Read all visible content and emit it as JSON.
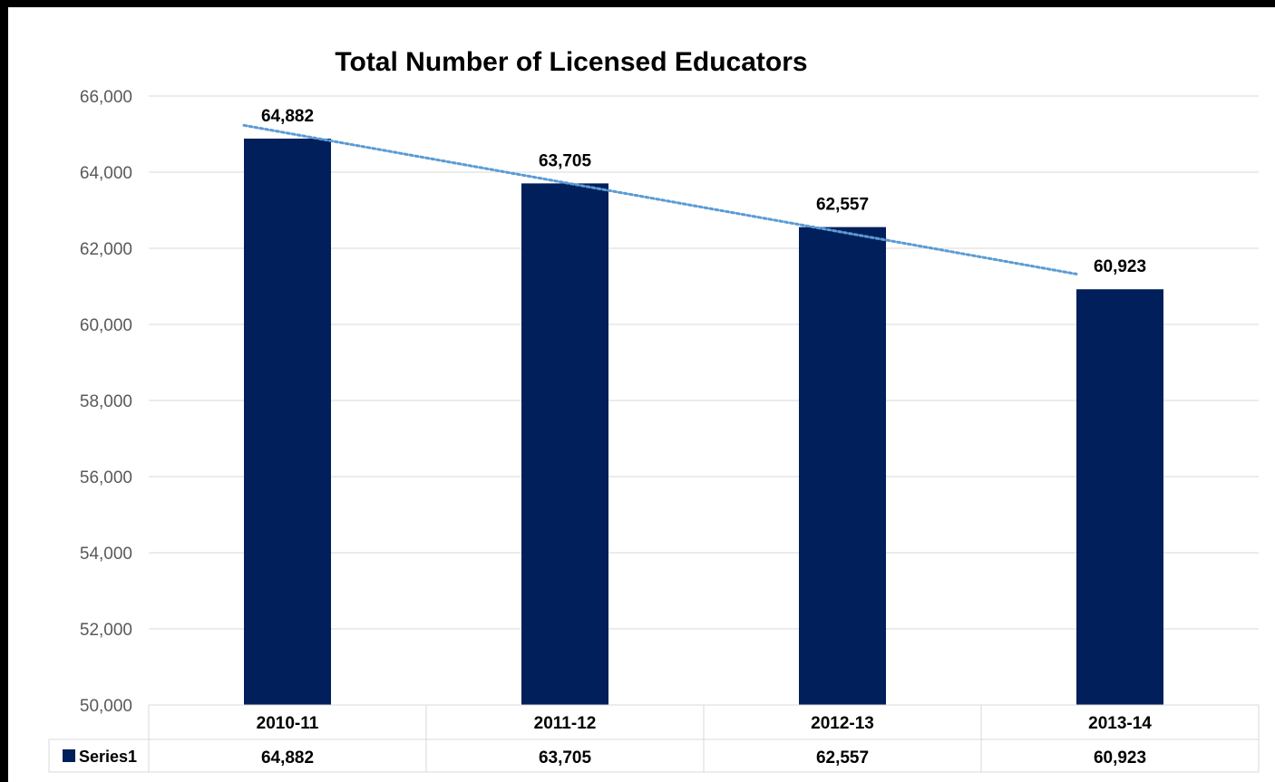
{
  "chart_data": {
    "type": "bar",
    "title": "Total Number of Licensed Educators",
    "categories": [
      "2010-11",
      "2011-12",
      "2012-13",
      "2013-14"
    ],
    "series": [
      {
        "name": "Series1",
        "values": [
          64882,
          63705,
          62557,
          60923
        ],
        "color": "#001f5b"
      }
    ],
    "value_labels": [
      "64,882",
      "63,705",
      "62,557",
      "60,923"
    ],
    "ylim": [
      50000,
      66000
    ],
    "yticks": [
      50000,
      52000,
      54000,
      56000,
      58000,
      60000,
      62000,
      64000,
      66000
    ],
    "ytick_labels": [
      "50,000",
      "52,000",
      "54,000",
      "56,000",
      "58,000",
      "60,000",
      "62,000",
      "64,000",
      "66,000"
    ],
    "trendline": {
      "type": "linear",
      "style": "dotted",
      "color": "#5b9bd5"
    },
    "grid": true,
    "data_table": true,
    "legend": "data-table"
  }
}
